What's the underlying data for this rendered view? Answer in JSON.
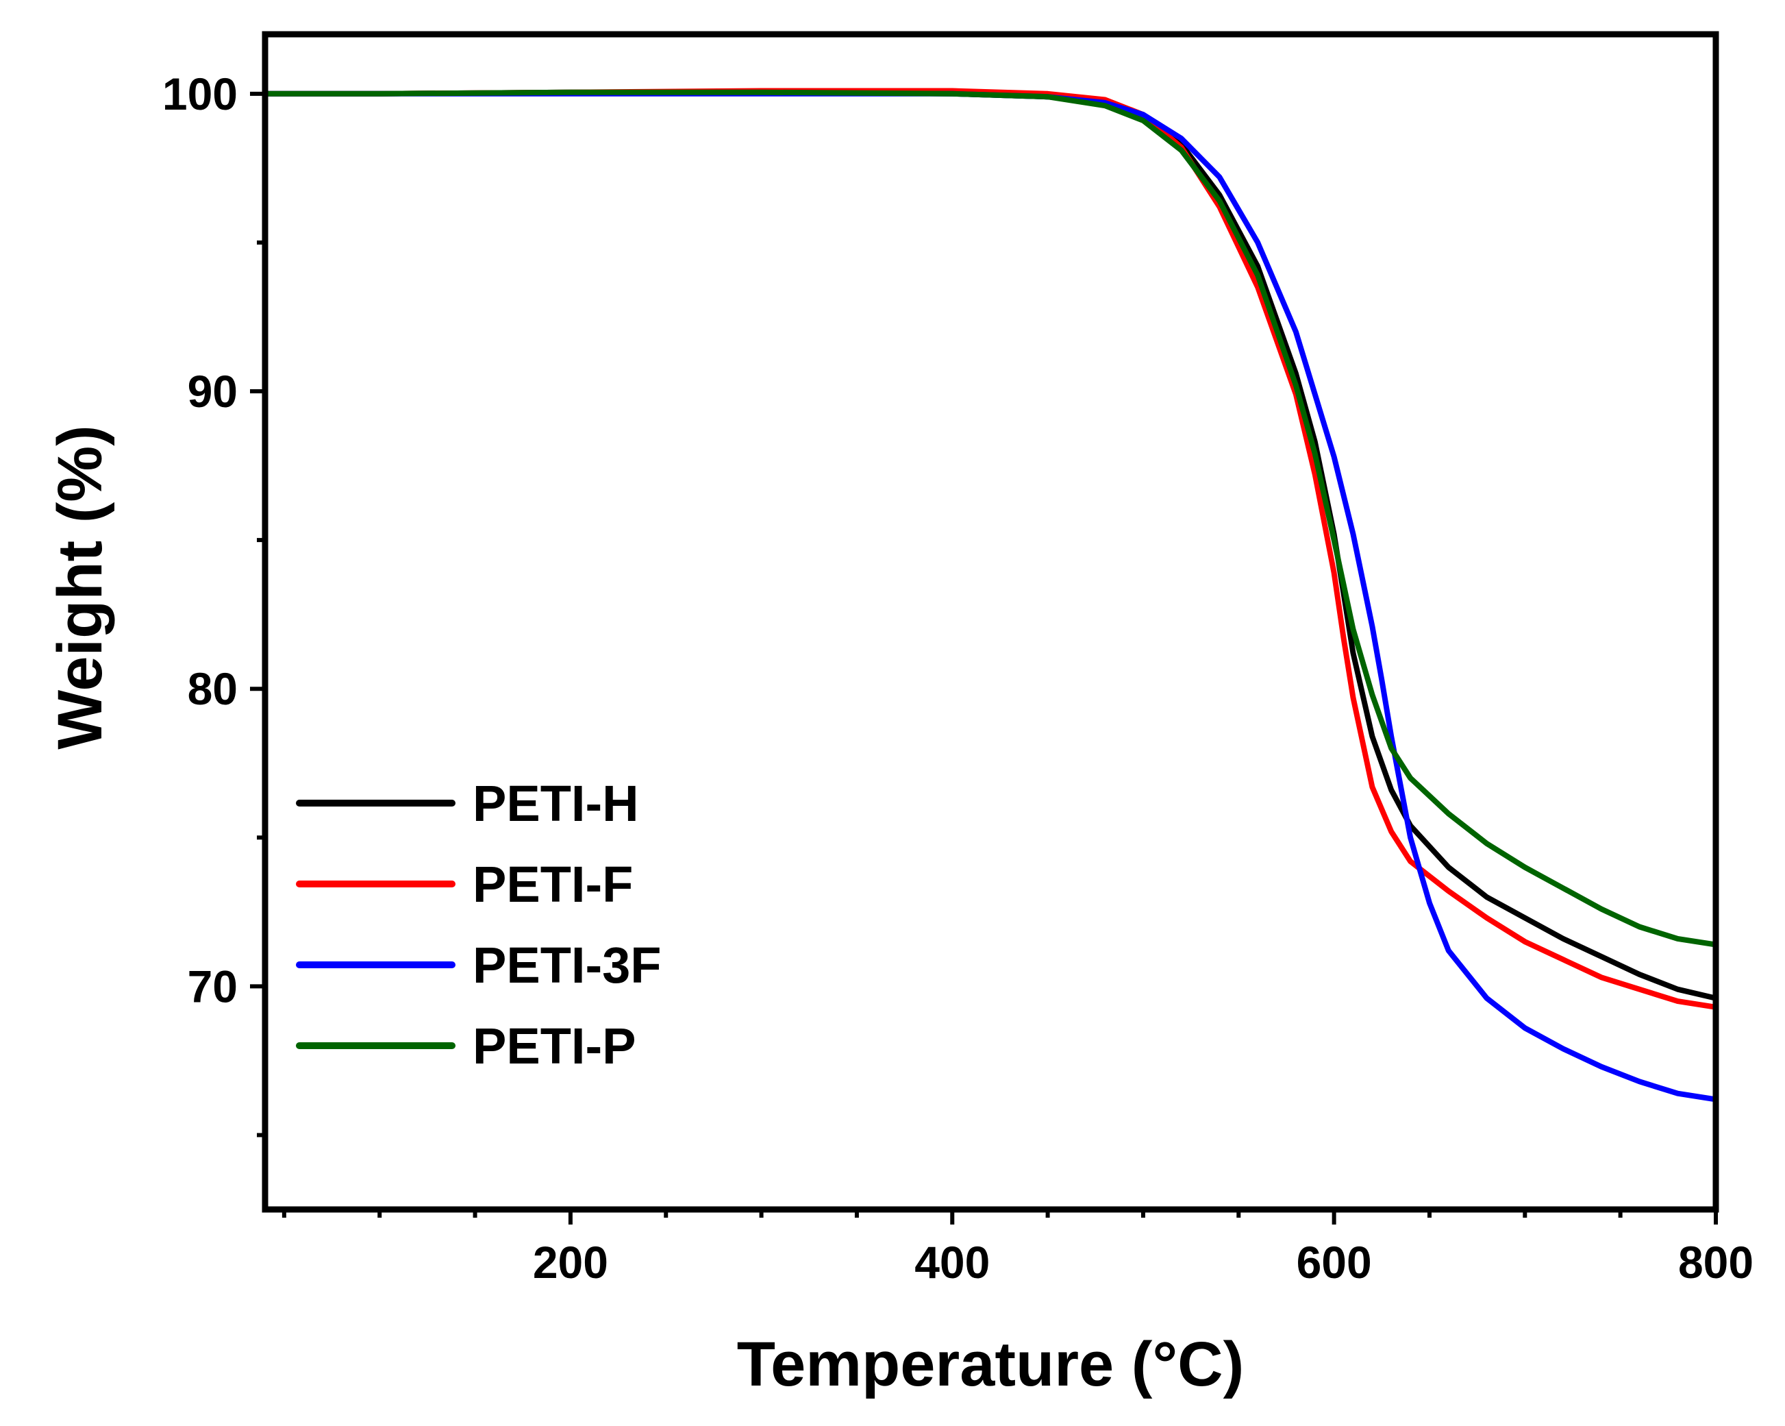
{
  "chart_data": {
    "type": "line",
    "title": "",
    "xlabel": "Temperature (°C)",
    "ylabel": "Weight (%)",
    "xlim": [
      40,
      800
    ],
    "ylim": [
      62.5,
      102
    ],
    "xticks": [
      200,
      400,
      600,
      800
    ],
    "yticks": [
      70,
      80,
      90,
      100
    ],
    "x_minor_step": 50,
    "y_minor_step": 5,
    "legend_position": "bottom-left",
    "series": [
      {
        "name": "PETI-H",
        "color": "#000000",
        "x": [
          40,
          100,
          200,
          300,
          400,
          450,
          480,
          500,
          520,
          540,
          560,
          580,
          590,
          600,
          605,
          610,
          620,
          630,
          640,
          660,
          680,
          700,
          720,
          740,
          760,
          780,
          800
        ],
        "y": [
          100,
          100,
          100.05,
          100.05,
          100,
          99.9,
          99.7,
          99.2,
          98.3,
          96.6,
          94.2,
          90.6,
          88.3,
          85.2,
          83.2,
          81.2,
          78.4,
          76.6,
          75.4,
          74.0,
          73.0,
          72.3,
          71.6,
          71.0,
          70.4,
          69.9,
          69.6
        ]
      },
      {
        "name": "PETI-F",
        "color": "#ff0000",
        "x": [
          40,
          100,
          200,
          300,
          400,
          450,
          480,
          500,
          520,
          540,
          560,
          580,
          590,
          600,
          605,
          610,
          620,
          630,
          640,
          660,
          680,
          700,
          720,
          740,
          760,
          780,
          800
        ],
        "y": [
          100,
          100,
          100.05,
          100.1,
          100.1,
          100,
          99.8,
          99.3,
          98.2,
          96.2,
          93.5,
          89.9,
          87.2,
          83.9,
          81.7,
          79.7,
          76.7,
          75.2,
          74.2,
          73.2,
          72.3,
          71.5,
          70.9,
          70.3,
          69.9,
          69.5,
          69.3
        ]
      },
      {
        "name": "PETI-3F",
        "color": "#0000ff",
        "x": [
          40,
          100,
          200,
          300,
          400,
          450,
          480,
          500,
          520,
          540,
          560,
          580,
          600,
          610,
          620,
          625,
          630,
          640,
          650,
          660,
          680,
          700,
          720,
          740,
          760,
          780,
          800
        ],
        "y": [
          100,
          100,
          100,
          100,
          100,
          99.9,
          99.7,
          99.3,
          98.5,
          97.2,
          95.0,
          92.0,
          87.8,
          85.2,
          82.1,
          80.3,
          78.4,
          75.0,
          72.8,
          71.2,
          69.6,
          68.6,
          67.9,
          67.3,
          66.8,
          66.4,
          66.2
        ]
      },
      {
        "name": "PETI-P",
        "color": "#006400",
        "x": [
          40,
          100,
          200,
          300,
          400,
          450,
          480,
          500,
          520,
          540,
          560,
          580,
          590,
          600,
          605,
          610,
          620,
          630,
          640,
          660,
          680,
          700,
          720,
          740,
          760,
          780,
          800
        ],
        "y": [
          100,
          100,
          100.05,
          100.05,
          100,
          99.9,
          99.6,
          99.1,
          98.1,
          96.4,
          93.9,
          90.2,
          87.9,
          85.0,
          83.5,
          82.0,
          79.8,
          78.0,
          77.0,
          75.8,
          74.8,
          74.0,
          73.3,
          72.6,
          72.0,
          71.6,
          71.4
        ]
      }
    ]
  }
}
